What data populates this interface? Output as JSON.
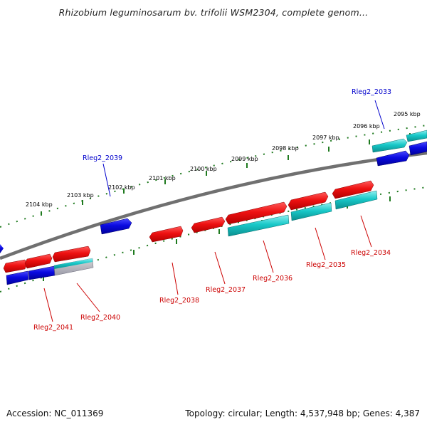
{
  "title": "Rhizobium leguminosarum bv. trifolii WSM2304, complete genom...",
  "footer": {
    "accession": "Accession: NC_011369",
    "summary": "Topology: circular; Length: 4,537,948 bp; Genes: 4,387"
  },
  "colors": {
    "backbone": "#808080",
    "forward_gene": "#ee1111",
    "reverse_gene": "#0a0ae0",
    "rna_gene": "#18c8c8",
    "ruler": "#1f7a1f",
    "label_forward": "#cc0000",
    "label_reverse": "#0000cc"
  },
  "ruler_ticks": [
    {
      "label": "2104 kbp"
    },
    {
      "label": "2103 kbp"
    },
    {
      "label": "2102 kbp"
    },
    {
      "label": "2101 kbp"
    },
    {
      "label": "2100 kbp"
    },
    {
      "label": "2099 kbp"
    },
    {
      "label": "2098 kbp"
    },
    {
      "label": "2097 kbp"
    },
    {
      "label": "2096 kbp"
    },
    {
      "label": "2095 kbp"
    }
  ],
  "gene_labels": [
    {
      "name": "Rleg2_2033",
      "color": "#0000cc"
    },
    {
      "name": "Rleg2_2039",
      "color": "#0000cc"
    },
    {
      "name": "Rleg2_2034",
      "color": "#cc0000"
    },
    {
      "name": "Rleg2_2035",
      "color": "#cc0000"
    },
    {
      "name": "Rleg2_2036",
      "color": "#cc0000"
    },
    {
      "name": "Rleg2_2037",
      "color": "#cc0000"
    },
    {
      "name": "Rleg2_2038",
      "color": "#cc0000"
    },
    {
      "name": "Rleg2_2040",
      "color": "#cc0000"
    },
    {
      "name": "Rleg2_2041",
      "color": "#cc0000"
    }
  ]
}
